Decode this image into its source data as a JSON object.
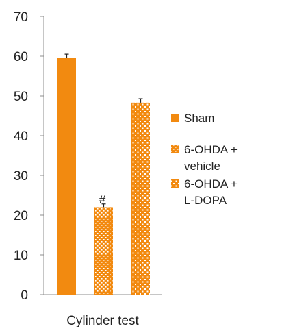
{
  "chart_data": {
    "type": "bar",
    "title": "",
    "xlabel": "",
    "ylabel": "",
    "categories": [
      "Cylinder test"
    ],
    "ylim": [
      0,
      70
    ],
    "yticks": [
      0,
      10,
      20,
      30,
      40,
      50,
      60,
      70
    ],
    "grid": false,
    "legend_position": "right",
    "series": [
      {
        "name": "Sham",
        "values": [
          59.5
        ],
        "error": [
          1.0
        ],
        "color": "#F28A10",
        "pattern": "solid",
        "annotation": ""
      },
      {
        "name": "6-OHDA + vehicle",
        "values": [
          22
        ],
        "error": [
          0.8
        ],
        "color": "#F28A10",
        "pattern": "dotted-dense",
        "annotation": "#"
      },
      {
        "name": "6-OHDA + L-DOPA",
        "values": [
          48.3
        ],
        "error": [
          1.0
        ],
        "color": "#F28A10",
        "pattern": "dotted-sparse",
        "annotation": ""
      }
    ],
    "legend": [
      {
        "lines": [
          "Sham"
        ]
      },
      {
        "lines": [
          "6-OHDA +",
          "vehicle"
        ]
      },
      {
        "lines": [
          "6-OHDA +",
          "L-DOPA"
        ]
      }
    ]
  }
}
